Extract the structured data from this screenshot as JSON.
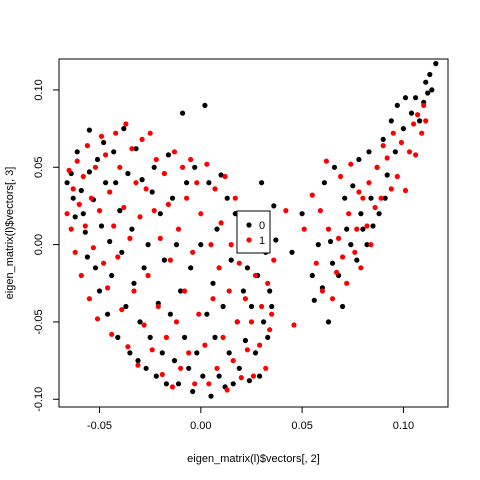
{
  "chart_data": {
    "type": "scatter",
    "title": "",
    "xlabel": "eigen_matrix(l)$vectors[, 2]",
    "ylabel": "eigen_matrix(l)$vectors[, 3]",
    "xlim": [
      -0.07,
      0.122
    ],
    "ylim": [
      -0.105,
      0.12
    ],
    "x_ticks": [
      {
        "value": -0.05,
        "label": "-0.05"
      },
      {
        "value": 0.0,
        "label": "0.00"
      },
      {
        "value": 0.05,
        "label": "0.05"
      },
      {
        "value": 0.1,
        "label": "0.10"
      }
    ],
    "y_ticks": [
      {
        "value": -0.1,
        "label": "-0.10"
      },
      {
        "value": -0.05,
        "label": "-0.05"
      },
      {
        "value": 0.0,
        "label": "0.00"
      },
      {
        "value": 0.05,
        "label": "0.05"
      },
      {
        "value": 0.1,
        "label": "0.10"
      }
    ],
    "grid": false,
    "legend": {
      "placement": "center",
      "entries": [
        {
          "label": "0",
          "color": "#000000"
        },
        {
          "label": "1",
          "color": "#ff0000"
        }
      ]
    },
    "series": [
      {
        "name": "0",
        "color": "#000000",
        "points": [
          [
            -0.066,
            0.04
          ],
          [
            -0.064,
            0.046
          ],
          [
            -0.063,
            0.03
          ],
          [
            -0.062,
            0.018
          ],
          [
            -0.061,
            0.06
          ],
          [
            -0.059,
            0.035
          ],
          [
            -0.058,
            0.02
          ],
          [
            -0.057,
            0.008
          ],
          [
            -0.056,
            -0.008
          ],
          [
            -0.055,
            0.047
          ],
          [
            -0.055,
            0.074
          ],
          [
            -0.053,
            0.029
          ],
          [
            -0.052,
            -0.015
          ],
          [
            -0.051,
            0.055
          ],
          [
            -0.05,
            -0.03
          ],
          [
            -0.049,
            0.012
          ],
          [
            -0.048,
            0.066
          ],
          [
            -0.047,
            0.04
          ],
          [
            -0.046,
            -0.045
          ],
          [
            -0.045,
            0.002
          ],
          [
            -0.044,
            -0.02
          ],
          [
            -0.043,
            0.06
          ],
          [
            -0.042,
            0.04
          ],
          [
            -0.041,
            -0.06
          ],
          [
            -0.04,
            0.022
          ],
          [
            -0.039,
            -0.005
          ],
          [
            -0.038,
            0.075
          ],
          [
            -0.037,
            -0.04
          ],
          [
            -0.036,
            0.046
          ],
          [
            -0.035,
            -0.07
          ],
          [
            -0.034,
            0.01
          ],
          [
            -0.033,
            -0.025
          ],
          [
            -0.032,
            0.062
          ],
          [
            -0.031,
            -0.075
          ],
          [
            -0.03,
            -0.05
          ],
          [
            -0.029,
            0.042
          ],
          [
            -0.028,
            -0.015
          ],
          [
            -0.027,
            -0.08
          ],
          [
            -0.026,
            0.0
          ],
          [
            -0.025,
            -0.06
          ],
          [
            -0.024,
            0.034
          ],
          [
            -0.023,
            0.05
          ],
          [
            -0.022,
            -0.085
          ],
          [
            -0.021,
            -0.038
          ],
          [
            -0.02,
            0.02
          ],
          [
            -0.019,
            -0.07
          ],
          [
            -0.018,
            -0.01
          ],
          [
            -0.017,
            -0.09
          ],
          [
            -0.016,
            0.058
          ],
          [
            -0.015,
            -0.045
          ],
          [
            -0.014,
            0.03
          ],
          [
            -0.013,
            -0.075
          ],
          [
            -0.012,
            0.0
          ],
          [
            -0.011,
            -0.09
          ],
          [
            -0.01,
            -0.03
          ],
          [
            -0.009,
            0.085
          ],
          [
            -0.008,
            -0.06
          ],
          [
            -0.007,
            0.04
          ],
          [
            -0.006,
            -0.08
          ],
          [
            -0.005,
            -0.015
          ],
          [
            -0.004,
            -0.095
          ],
          [
            -0.003,
            0.05
          ],
          [
            -0.002,
            -0.07
          ],
          [
            0.0,
            0.0
          ],
          [
            0.001,
            -0.085
          ],
          [
            0.002,
            0.09
          ],
          [
            0.003,
            -0.045
          ],
          [
            0.004,
            0.04
          ],
          [
            0.005,
            -0.098
          ],
          [
            0.006,
            -0.025
          ],
          [
            0.007,
            -0.06
          ],
          [
            0.008,
            0.01
          ],
          [
            0.009,
            -0.085
          ],
          [
            0.01,
            0.045
          ],
          [
            0.011,
            -0.04
          ],
          [
            0.012,
            -0.092
          ],
          [
            0.013,
            0.03
          ],
          [
            0.014,
            -0.07
          ],
          [
            0.015,
            -0.01
          ],
          [
            0.016,
            -0.09
          ],
          [
            0.017,
            0.02
          ],
          [
            0.018,
            -0.05
          ],
          [
            0.019,
            -0.08
          ],
          [
            0.02,
            0.005
          ],
          [
            0.021,
            -0.03
          ],
          [
            0.022,
            -0.062
          ],
          [
            0.023,
            -0.015
          ],
          [
            0.024,
            -0.088
          ],
          [
            0.025,
            -0.04
          ],
          [
            0.026,
            0.01
          ],
          [
            0.027,
            -0.07
          ],
          [
            0.028,
            -0.02
          ],
          [
            0.029,
            -0.085
          ],
          [
            0.03,
            0.04
          ],
          [
            0.031,
            -0.05
          ],
          [
            0.032,
            -0.005
          ],
          [
            0.033,
            -0.06
          ],
          [
            0.034,
            -0.03
          ],
          [
            0.035,
            -0.04
          ],
          [
            0.036,
            0.025
          ],
          [
            0.037,
            0.003
          ],
          [
            0.045,
            -0.005
          ],
          [
            0.05,
            0.02
          ],
          [
            0.055,
            -0.02
          ],
          [
            0.056,
            -0.036
          ],
          [
            0.058,
            0.0
          ],
          [
            0.06,
            -0.028
          ],
          [
            0.061,
            0.04
          ],
          [
            0.063,
            -0.05
          ],
          [
            0.064,
            0.002
          ],
          [
            0.065,
            -0.012
          ],
          [
            0.066,
            0.05
          ],
          [
            0.068,
            -0.02
          ],
          [
            0.07,
            -0.04
          ],
          [
            0.071,
            0.03
          ],
          [
            0.072,
            0.01
          ],
          [
            0.074,
            0.0
          ],
          [
            0.075,
            0.038
          ],
          [
            0.077,
            -0.01
          ],
          [
            0.078,
            0.055
          ],
          [
            0.079,
            0.02
          ],
          [
            0.08,
            0.01
          ],
          [
            0.082,
            0.0
          ],
          [
            0.083,
            0.06
          ],
          [
            0.084,
            0.03
          ],
          [
            0.085,
            0.012
          ],
          [
            0.087,
            0.05
          ],
          [
            0.088,
            0.02
          ],
          [
            0.09,
            0.068
          ],
          [
            0.091,
            0.03
          ],
          [
            0.092,
            0.045
          ],
          [
            0.094,
            0.08
          ],
          [
            0.096,
            0.06
          ],
          [
            0.097,
            0.09
          ],
          [
            0.1,
            0.075
          ],
          [
            0.101,
            0.095
          ],
          [
            0.104,
            0.085
          ],
          [
            0.106,
            0.095
          ],
          [
            0.108,
            0.08
          ],
          [
            0.11,
            0.092
          ],
          [
            0.111,
            0.105
          ],
          [
            0.112,
            0.098
          ],
          [
            0.113,
            0.11
          ],
          [
            0.114,
            0.1
          ],
          [
            0.116,
            0.117
          ]
        ]
      },
      {
        "name": "1",
        "color": "#ff0000",
        "points": [
          [
            -0.066,
            0.02
          ],
          [
            -0.065,
            0.048
          ],
          [
            -0.064,
            0.01
          ],
          [
            -0.063,
            0.036
          ],
          [
            -0.062,
            -0.005
          ],
          [
            -0.061,
            0.054
          ],
          [
            -0.06,
            0.026
          ],
          [
            -0.059,
            -0.02
          ],
          [
            -0.058,
            0.044
          ],
          [
            -0.057,
            0.012
          ],
          [
            -0.056,
            0.064
          ],
          [
            -0.055,
            -0.035
          ],
          [
            -0.054,
            0.03
          ],
          [
            -0.053,
            -0.002
          ],
          [
            -0.052,
            0.05
          ],
          [
            -0.051,
            -0.048
          ],
          [
            -0.05,
            0.022
          ],
          [
            -0.049,
            0.07
          ],
          [
            -0.048,
            -0.012
          ],
          [
            -0.047,
            0.058
          ],
          [
            -0.046,
            -0.028
          ],
          [
            -0.045,
            0.034
          ],
          [
            -0.044,
            -0.058
          ],
          [
            -0.043,
            0.012
          ],
          [
            -0.042,
            0.072
          ],
          [
            -0.041,
            -0.008
          ],
          [
            -0.04,
            0.05
          ],
          [
            -0.039,
            -0.042
          ],
          [
            -0.038,
            0.024
          ],
          [
            -0.037,
            0.078
          ],
          [
            -0.036,
            -0.066
          ],
          [
            -0.035,
            0.004
          ],
          [
            -0.034,
            0.062
          ],
          [
            -0.033,
            -0.03
          ],
          [
            -0.032,
            0.04
          ],
          [
            -0.031,
            -0.078
          ],
          [
            -0.03,
            0.018
          ],
          [
            -0.029,
            0.068
          ],
          [
            -0.028,
            -0.052
          ],
          [
            -0.027,
            0.036
          ],
          [
            -0.026,
            -0.02
          ],
          [
            -0.025,
            0.072
          ],
          [
            -0.024,
            -0.068
          ],
          [
            -0.023,
            0.022
          ],
          [
            -0.022,
            0.055
          ],
          [
            -0.021,
            -0.04
          ],
          [
            -0.02,
            0.004
          ],
          [
            -0.019,
            -0.084
          ],
          [
            -0.018,
            0.046
          ],
          [
            -0.017,
            -0.06
          ],
          [
            -0.016,
            0.026
          ],
          [
            -0.015,
            -0.01
          ],
          [
            -0.014,
            -0.092
          ],
          [
            -0.013,
            0.06
          ],
          [
            -0.012,
            -0.05
          ],
          [
            -0.011,
            0.01
          ],
          [
            -0.01,
            -0.08
          ],
          [
            -0.009,
            0.05
          ],
          [
            -0.008,
            -0.03
          ],
          [
            -0.007,
            0.03
          ],
          [
            -0.006,
            -0.07
          ],
          [
            -0.005,
            0.055
          ],
          [
            -0.004,
            -0.005
          ],
          [
            -0.003,
            -0.09
          ],
          [
            -0.002,
            0.04
          ],
          [
            -0.001,
            -0.045
          ],
          [
            0.0,
            0.02
          ],
          [
            0.002,
            -0.065
          ],
          [
            0.003,
            0.052
          ],
          [
            0.004,
            -0.09
          ],
          [
            0.005,
            0.0
          ],
          [
            0.006,
            -0.035
          ],
          [
            0.007,
            0.036
          ],
          [
            0.008,
            -0.08
          ],
          [
            0.009,
            -0.015
          ],
          [
            0.01,
            0.014
          ],
          [
            0.011,
            -0.06
          ],
          [
            0.012,
            0.044
          ],
          [
            0.013,
            -0.094
          ],
          [
            0.014,
            -0.03
          ],
          [
            0.015,
            0.0
          ],
          [
            0.016,
            -0.075
          ],
          [
            0.017,
            0.03
          ],
          [
            0.018,
            -0.05
          ],
          [
            0.019,
            -0.012
          ],
          [
            0.02,
            -0.086
          ],
          [
            0.021,
            0.012
          ],
          [
            0.022,
            -0.035
          ],
          [
            0.023,
            -0.068
          ],
          [
            0.024,
            0.0
          ],
          [
            0.025,
            -0.05
          ],
          [
            0.026,
            -0.085
          ],
          [
            0.027,
            -0.02
          ],
          [
            0.028,
            0.02
          ],
          [
            0.029,
            -0.065
          ],
          [
            0.03,
            -0.04
          ],
          [
            0.031,
            0.005
          ],
          [
            0.032,
            -0.08
          ],
          [
            0.033,
            -0.025
          ],
          [
            0.034,
            -0.055
          ],
          [
            0.035,
            -0.045
          ],
          [
            0.036,
            -0.01
          ],
          [
            0.042,
            0.022
          ],
          [
            0.046,
            -0.052
          ],
          [
            0.051,
            0.01
          ],
          [
            0.055,
            0.032
          ],
          [
            0.057,
            -0.012
          ],
          [
            0.059,
            0.022
          ],
          [
            0.06,
            -0.03
          ],
          [
            0.062,
            0.054
          ],
          [
            0.063,
            0.01
          ],
          [
            0.065,
            -0.035
          ],
          [
            0.067,
            -0.018
          ],
          [
            0.068,
            0.004
          ],
          [
            0.069,
            0.044
          ],
          [
            0.07,
            -0.008
          ],
          [
            0.072,
            -0.025
          ],
          [
            0.073,
            0.02
          ],
          [
            0.074,
            0.052
          ],
          [
            0.076,
            -0.005
          ],
          [
            0.077,
            0.01
          ],
          [
            0.078,
            0.034
          ],
          [
            0.079,
            -0.015
          ],
          [
            0.08,
            0.03
          ],
          [
            0.082,
            0.012
          ],
          [
            0.083,
            0.04
          ],
          [
            0.084,
            0.0
          ],
          [
            0.086,
            0.024
          ],
          [
            0.087,
            0.05
          ],
          [
            0.089,
            0.03
          ],
          [
            0.09,
            0.064
          ],
          [
            0.092,
            0.056
          ],
          [
            0.094,
            0.036
          ],
          [
            0.095,
            0.072
          ],
          [
            0.097,
            0.044
          ],
          [
            0.099,
            0.066
          ],
          [
            0.101,
            0.035
          ],
          [
            0.103,
            0.06
          ],
          [
            0.105,
            0.078
          ],
          [
            0.106,
            0.058
          ],
          [
            0.107,
            0.084
          ],
          [
            0.109,
            0.072
          ],
          [
            0.11,
            0.09
          ],
          [
            0.111,
            0.08
          ]
        ]
      }
    ]
  }
}
